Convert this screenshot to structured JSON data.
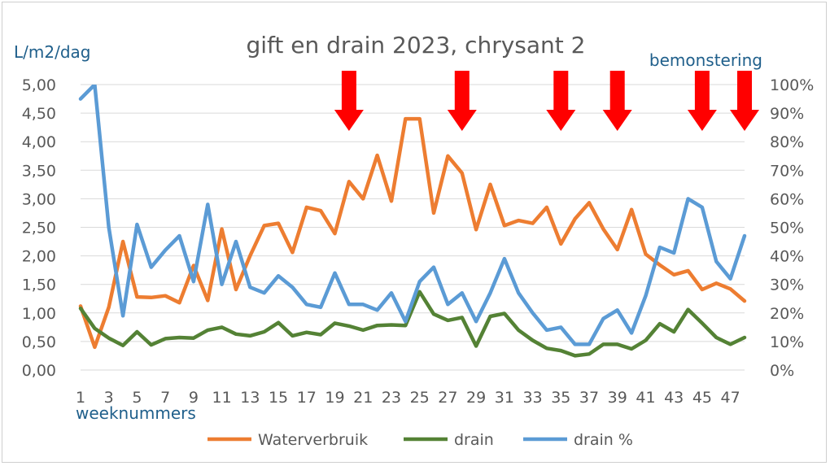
{
  "chart_data": {
    "type": "line",
    "title": "gift en drain 2023, chrysant 2",
    "ylabel": "L/m2/dag",
    "xlabel": "weeknummers",
    "y2label": "bemonstering",
    "ylim": [
      0,
      5
    ],
    "y2lim": [
      0,
      1
    ],
    "yticks": [
      "0,00",
      "0,50",
      "1,00",
      "1,50",
      "2,00",
      "2,50",
      "3,00",
      "3,50",
      "4,00",
      "4,50",
      "5,00"
    ],
    "y2ticks": [
      "0%",
      "10%",
      "20%",
      "30%",
      "40%",
      "50%",
      "60%",
      "70%",
      "80%",
      "90%",
      "100%"
    ],
    "xticks": [
      "1",
      "3",
      "5",
      "7",
      "9",
      "11",
      "13",
      "15",
      "17",
      "19",
      "21",
      "23",
      "25",
      "27",
      "29",
      "31",
      "33",
      "35",
      "37",
      "39",
      "41",
      "43",
      "45",
      "47"
    ],
    "x": [
      1,
      2,
      3,
      4,
      5,
      6,
      7,
      8,
      9,
      10,
      11,
      12,
      13,
      14,
      15,
      16,
      17,
      18,
      19,
      20,
      21,
      22,
      23,
      24,
      25,
      26,
      27,
      28,
      29,
      30,
      31,
      32,
      33,
      34,
      35,
      36,
      37,
      38,
      39,
      40,
      41,
      42,
      43,
      44,
      45,
      46,
      47,
      48
    ],
    "series": [
      {
        "name": "Waterverbruik",
        "axis": "left",
        "color": "#ed7d31",
        "values": [
          1.12,
          0.4,
          1.1,
          2.25,
          1.28,
          1.27,
          1.3,
          1.18,
          1.83,
          1.22,
          2.47,
          1.41,
          2.0,
          2.53,
          2.57,
          2.06,
          2.85,
          2.79,
          2.39,
          3.3,
          3.0,
          3.76,
          2.96,
          4.4,
          4.4,
          2.75,
          3.75,
          3.45,
          2.46,
          3.25,
          2.53,
          2.62,
          2.57,
          2.85,
          2.21,
          2.65,
          2.93,
          2.47,
          2.11,
          2.81,
          2.03,
          1.84,
          1.67,
          1.74,
          1.41,
          1.52,
          1.42,
          1.21
        ]
      },
      {
        "name": "drain",
        "axis": "left",
        "color": "#548235",
        "values": [
          1.08,
          0.73,
          0.56,
          0.43,
          0.67,
          0.44,
          0.55,
          0.57,
          0.56,
          0.7,
          0.75,
          0.63,
          0.6,
          0.67,
          0.83,
          0.6,
          0.66,
          0.62,
          0.82,
          0.77,
          0.7,
          0.78,
          0.79,
          0.78,
          1.37,
          0.98,
          0.87,
          0.92,
          0.42,
          0.94,
          0.99,
          0.7,
          0.52,
          0.38,
          0.34,
          0.25,
          0.28,
          0.45,
          0.45,
          0.37,
          0.52,
          0.81,
          0.67,
          1.06,
          0.82,
          0.57,
          0.45,
          0.57
        ]
      },
      {
        "name": "drain %",
        "axis": "right",
        "color": "#5b9bd5",
        "values": [
          0.95,
          1.0,
          0.5,
          0.19,
          0.51,
          0.36,
          0.42,
          0.47,
          0.31,
          0.58,
          0.3,
          0.45,
          0.29,
          0.27,
          0.33,
          0.29,
          0.23,
          0.22,
          0.34,
          0.23,
          0.23,
          0.21,
          0.27,
          0.17,
          0.31,
          0.36,
          0.23,
          0.27,
          0.17,
          0.27,
          0.39,
          0.27,
          0.2,
          0.14,
          0.15,
          0.09,
          0.09,
          0.18,
          0.21,
          0.13,
          0.26,
          0.43,
          0.41,
          0.6,
          0.57,
          0.38,
          0.32,
          0.47
        ]
      }
    ],
    "annotations": {
      "arrow_color": "#ff0000",
      "arrows_at_week": [
        20,
        28,
        35,
        39,
        45,
        48
      ]
    },
    "grid": true,
    "legend_position": "bottom"
  }
}
